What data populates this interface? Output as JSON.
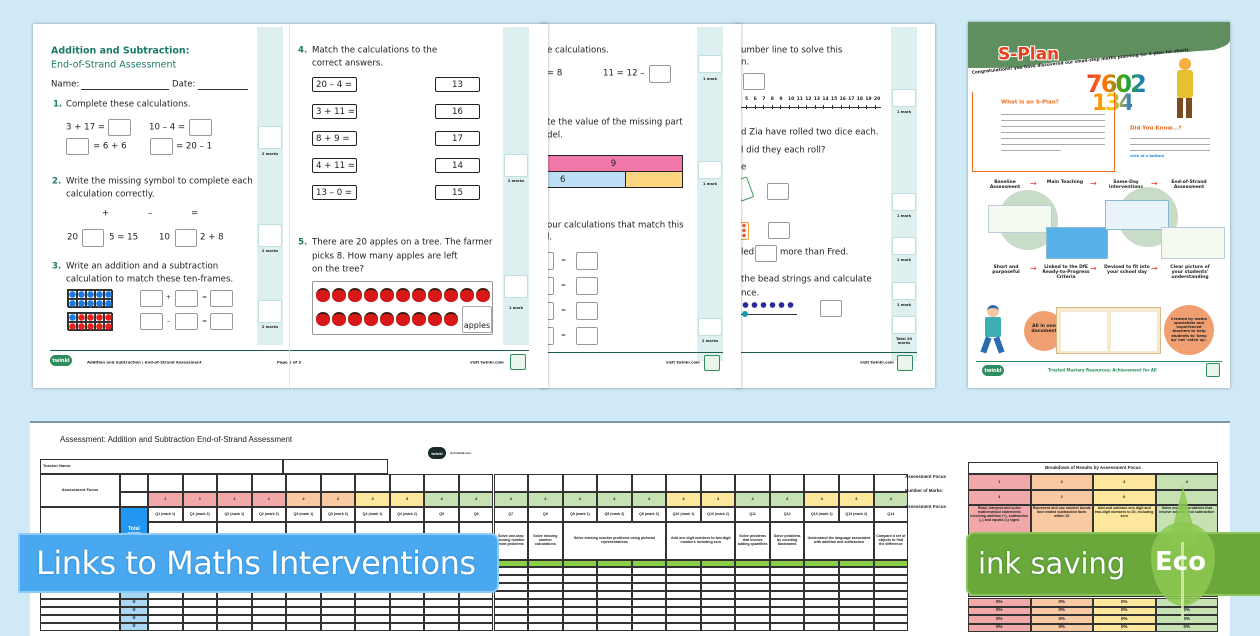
{
  "colors": {
    "background": "#cfeaf6",
    "teal_title": "#1a7a6a",
    "marks_column": "#ddefef",
    "focus_1": "#f2a8a8",
    "focus_2": "#f9caa2",
    "focus_3": "#fde79c",
    "focus_4": "#c6e1b2",
    "total_score": "#2196f3",
    "banner_blue": "#4aa8f0",
    "eco_green": "#6aa83c"
  },
  "worksheet": {
    "title_line1": "Addition and Subtraction:",
    "title_line2": "End-of-Strand Assessment",
    "name_label": "Name:",
    "date_label": "Date:",
    "q1": {
      "num": "1.",
      "text": "Complete these calculations.",
      "calc_a": "3 + 17 =",
      "calc_b": "10 – 4 =",
      "calc_c": "= 6 + 6",
      "calc_d": "= 20 – 1"
    },
    "q2": {
      "num": "2.",
      "text1": "Write the missing symbol to complete each",
      "text2": "calculation correctly.",
      "symbols": [
        "+",
        "–",
        "="
      ],
      "a_left": "20",
      "a_right": "5 = 15",
      "b_left": "10",
      "b_right": "2 + 8"
    },
    "q3": {
      "num": "3.",
      "text1": "Write an addition and a subtraction",
      "text2": "calculation to match these ten-frames.",
      "plus": "+",
      "minus": "–",
      "equals": "="
    },
    "q4": {
      "num": "4.",
      "text1": "Match the calculations to the",
      "text2": "correct answers.",
      "left": [
        "20 – 4 =",
        "3 + 11 =",
        "8 + 9 =",
        "4 + 11 =",
        "13 – 0 ="
      ],
      "right": [
        "13",
        "16",
        "17",
        "14",
        "15"
      ]
    },
    "q5": {
      "num": "5.",
      "text1": "There are 20 apples on a tree. The farmer",
      "text2": "picks 8. How many apples are left",
      "text3": "on the tree?",
      "unit": "apples",
      "apples_row1": 11,
      "apples_row2": 9
    },
    "marks": {
      "p1": [
        "2 marks",
        "2 marks",
        "2 marks"
      ],
      "p2": [
        "2 marks",
        "1 mark"
      ]
    },
    "footer": {
      "logo": "twinkl",
      "title": "Addition and Subtraction | End-of-Strand Assessment",
      "page": "Page 1 of 3",
      "url": "visit twinkl.com"
    }
  },
  "sheet2": {
    "line1": "e calculations.",
    "calc_a": "= 8",
    "calc_b": "11 = 12 –",
    "line2": "te the value of the missing part",
    "line3": "del.",
    "bar_whole": "9",
    "bar_part": "6",
    "line4": "our calculations that match this",
    "line5": "l.",
    "eq": "=",
    "marks": [
      "1 mark",
      "1 mark",
      "2 marks"
    ],
    "url": "visit twinkl.com"
  },
  "sheet3": {
    "line1": "umber line to solve this",
    "line2": "n.",
    "number_line": [
      "5",
      "6",
      "7",
      "8",
      "9",
      "10",
      "11",
      "12",
      "13",
      "14",
      "15",
      "16",
      "17",
      "18",
      "19",
      "20"
    ],
    "line3": "d Zia have rolled two dice each.",
    "line4": "l did they each roll?",
    "line5": "e",
    "line6_a": "led",
    "line6_b": "more than Fred.",
    "line7": "the bead strings and calculate",
    "line8": "nce.",
    "marks": [
      "1 mark",
      "1 mark",
      "1 mark",
      "1 mark"
    ],
    "total": "Total 20 marks",
    "url": "visit twinkl.com"
  },
  "poster": {
    "title": "S-Plan",
    "congrats": "Congratulations! you have discovered our small-step maths planning (or S-plan for short).",
    "numbers_top": "7602",
    "numbers_bottom": "134",
    "what_heading": "What is an S-Plan?",
    "did_heading": "Did You Know...?",
    "did_link": "click of a button!",
    "flow_top": [
      "Baseline Assessment",
      "Main Teaching",
      "Same-Day Interventions",
      "End-of-Strand Assessment"
    ],
    "flow_bottom": [
      "Short and purposeful",
      "Linked to the DfE Ready-to-Progress Criteria",
      "Devised to fit into your school day",
      "Clear picture of your students' understanding"
    ],
    "circle_left": "All in one document",
    "circle_right": "Created by maths specialists and experienced teachers to help students to 'keep up' not 'catch up'.",
    "footer": "Trusted Mastery Resources; Achievement for All",
    "logo": "twinkl"
  },
  "spreadsheet": {
    "title": "Assessment:  Addition and Subtraction End-of-Strand Assessment",
    "logo": "twinkl",
    "logo_url": "visit twinkl.com",
    "teacher_label": "Teacher Name:",
    "focus_label": "Assessment Focus",
    "total_label": "Total score",
    "focus": [
      1,
      1,
      1,
      1,
      2,
      2,
      3,
      3,
      4,
      4,
      4,
      4,
      4,
      4,
      4,
      3,
      3,
      4,
      4,
      3,
      3,
      4
    ],
    "questions": [
      "Q1 (mark 1)",
      "Q1 (mark 2)",
      "Q2 (mark 1)",
      "Q2 (mark 2)",
      "Q3 (mark 1)",
      "Q3 (mark 2)",
      "Q4 (mark 1)",
      "Q4 (mark 2)",
      "Q5",
      "Q6",
      "Q7",
      "Q8",
      "Q9 (mark 1)",
      "Q9 (mark 2)",
      "Q9 (mark 3)",
      "Q10 (mark 1)",
      "Q10 (mark 2)",
      "Q11",
      "Q12",
      "Q13 (mark 1)",
      "Q13 (mark 2)",
      "Q14"
    ],
    "descriptions": [
      {
        "span": 2,
        "text": "Read, interpret and solve"
      },
      {
        "span": 2,
        "text": ""
      },
      {
        "span": 2,
        "text": ""
      },
      {
        "span": 2,
        "text": ""
      },
      {
        "span": 1,
        "text": "Solve one-"
      },
      {
        "span": 1,
        "text": "Solve one-"
      },
      {
        "span": 1,
        "text": "Solve one-step missing number word problems"
      },
      {
        "span": 1,
        "text": "Solve missing number calculations"
      },
      {
        "span": 3,
        "text": "Solve missing number problems using pictorial representations"
      },
      {
        "span": 2,
        "text": "Add one digit numbers to two-digit numbers including zero"
      },
      {
        "span": 1,
        "text": "Solve problems that involve adding quantities"
      },
      {
        "span": 1,
        "text": "Solve problems by counting backwards"
      },
      {
        "span": 2,
        "text": "Understand the language associated with addition and subtraction"
      },
      {
        "span": 1,
        "text": "Compare a set of objects to find the difference"
      }
    ],
    "total_values": [
      "0",
      "0",
      "0",
      "0"
    ],
    "breakdown": {
      "title": "Breakdown of Results by Assessment Focus",
      "row_labels": [
        "Assessment Focus",
        "Number of Marks:",
        "Assessment Focus"
      ],
      "focus": [
        "1",
        "2",
        "3",
        "4"
      ],
      "marks": [
        "4",
        "2",
        "6",
        ""
      ],
      "descriptions": [
        "Read, interpret and solve mathematical statements involving addition (+), subtraction (–) and equals (=) signs",
        "Represent and use number bonds and related subtraction facts within 20",
        "Add and subtract one-digit and two-digit numbers to 20, including zero",
        "Solve one-step problems that involve addition and subtraction"
      ],
      "percent_rows": [
        [
          "0%",
          "0%",
          "0%",
          "0%"
        ],
        [
          "0%",
          "0%",
          "0%",
          "0%"
        ],
        [
          "0%",
          "0%",
          "0%",
          "0%"
        ],
        [
          "0%",
          "0%",
          "0%",
          "0%"
        ]
      ]
    }
  },
  "banners": {
    "interventions": "Links to Maths Interventions",
    "ink_saving": "ink saving",
    "eco": "Eco"
  }
}
